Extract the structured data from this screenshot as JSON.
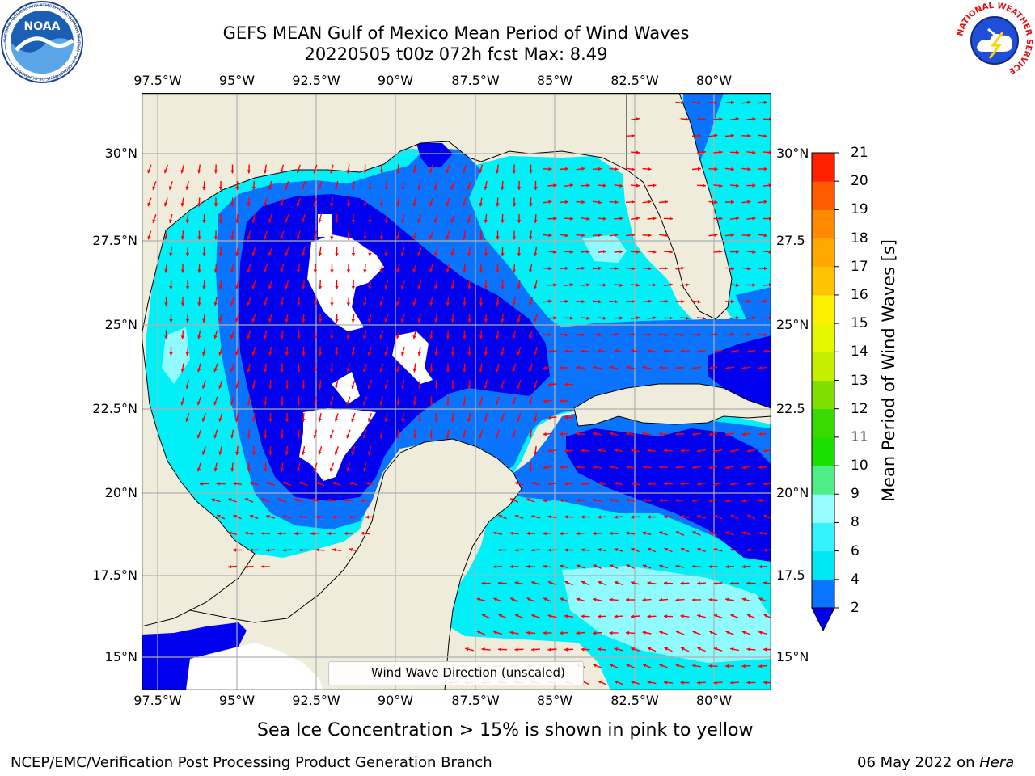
{
  "header": {
    "title_line1": "GEFS MEAN Gulf of Mexico Mean Period of Wind Waves",
    "title_line2": "20220505 t00z 072h fcst   Max: 8.49"
  },
  "logos": {
    "left_text": "NOAA",
    "left_ring_text": "NATIONAL OCEANIC AND ATMOSPHERIC ADMINISTRATION · U.S. DEPARTMENT OF COMMERCE",
    "right_ring_text": "NATIONAL WEATHER SERVICE"
  },
  "axes": {
    "lon_labels": [
      "97.5°W",
      "95°W",
      "92.5°W",
      "90°W",
      "87.5°W",
      "85°W",
      "82.5°W",
      "80°W"
    ],
    "lat_labels_left": [
      "30°N",
      "27.5°N",
      "25°N",
      "22.5°N",
      "20°N",
      "17.5°N",
      "15°N"
    ],
    "lat_labels_right": [
      "30°N",
      "27.5",
      "25°N",
      "22.5",
      "20°N",
      "17.5",
      "15°N"
    ]
  },
  "legend": {
    "label": "Wind Wave Direction (unscaled)"
  },
  "colorbar": {
    "label": "Mean Period of Wind Waves [s]",
    "ticks": [
      "2",
      "4",
      "6",
      "8",
      "9",
      "10",
      "11",
      "12",
      "13",
      "14",
      "15",
      "16",
      "17",
      "18",
      "19",
      "20",
      "21"
    ],
    "colors": [
      "#0a74ff",
      "#00e8f6",
      "#35f2ff",
      "#97fbff",
      "#4fef88",
      "#19e000",
      "#39da00",
      "#7fe000",
      "#c4f000",
      "#e6f500",
      "#fcf000",
      "#ffc400",
      "#ffa800",
      "#ff8a00",
      "#ff5a00",
      "#ff2000",
      "#0000ee"
    ]
  },
  "caption": "Sea Ice Concentration > 15% is shown in pink to yellow",
  "footer": {
    "left": "NCEP/EMC/Verification Post Processing Product Generation Branch",
    "right_date": "06 May 2022 on",
    "right_host": "Hera"
  },
  "map": {
    "colors": {
      "land": "#efecdc",
      "under_2s": "#0000ee",
      "band_2_4": "#0a74ff",
      "band_4_6": "#00f0f8",
      "band_6_8": "#8ffbff",
      "no_data": "#ffffff",
      "arrows": "#ff0000",
      "grid": "#b0b0b0"
    }
  }
}
